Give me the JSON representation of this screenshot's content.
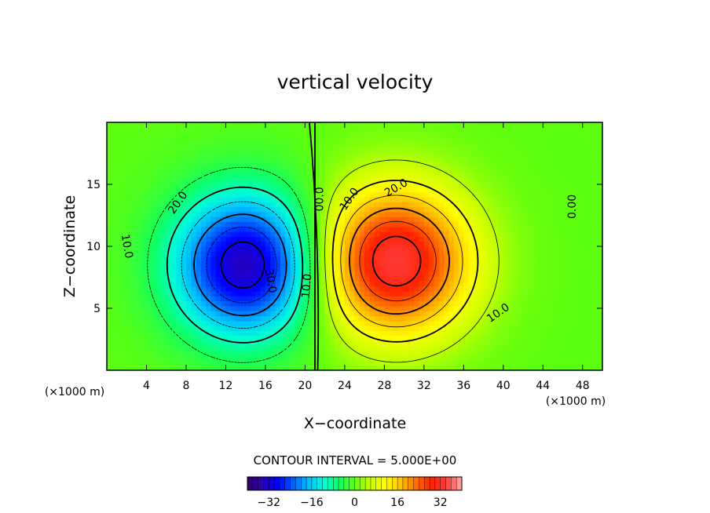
{
  "chart_data": {
    "type": "heatmap",
    "title": "vertical velocity",
    "xlabel": "X−coordinate",
    "ylabel": "Z−coordinate",
    "x_units": "(×1000 m)",
    "y_units": "(×1000 m)",
    "xlim": [
      0,
      50
    ],
    "ylim": [
      0,
      20
    ],
    "x_ticks": [
      4,
      8,
      12,
      16,
      20,
      24,
      28,
      32,
      36,
      40,
      44,
      48
    ],
    "y_ticks": [
      5,
      10,
      15
    ],
    "contour_interval_note": "CONTOUR INTERVAL = 5.000E+00",
    "contour_interval": 5,
    "field": {
      "downdraft": {
        "center_x": 14,
        "center_z": 8.5,
        "min": -34,
        "radius_x": 7.5,
        "radius_z": 6
      },
      "updraft": {
        "center_x": 29,
        "center_z": 8.8,
        "max": 34,
        "radius_x": 8,
        "radius_z": 6.2
      },
      "zero_line_x": 21
    },
    "contour_labels": [
      {
        "text": "10.0",
        "x": 2,
        "z": 10,
        "rotation": 80
      },
      {
        "text": "20.0",
        "x": 7.2,
        "z": 13.5,
        "rotation": -55
      },
      {
        "text": "30.0",
        "x": 16.5,
        "z": 7.2,
        "rotation": 80
      },
      {
        "text": "10.0",
        "x": 20.2,
        "z": 6.8,
        "rotation": -85
      },
      {
        "text": "00.0",
        "x": 21.5,
        "z": 13.8,
        "rotation": -90
      },
      {
        "text": "10.0",
        "x": 24.5,
        "z": 13.8,
        "rotation": -55
      },
      {
        "text": "20.0",
        "x": 29.2,
        "z": 14.7,
        "rotation": -30
      },
      {
        "text": "10.0",
        "x": 39.5,
        "z": 4.6,
        "rotation": -35
      },
      {
        "text": "0.00",
        "x": 47,
        "z": 13.2,
        "rotation": -90
      }
    ],
    "colorbar": {
      "min": -40,
      "max": 40,
      "tick_labels": [
        -32,
        -16,
        0,
        16,
        32
      ],
      "colors": [
        "#35005f",
        "#2a00b8",
        "#0000ff",
        "#0060ff",
        "#00c0ff",
        "#00ffd6",
        "#10ff60",
        "#5cff10",
        "#c8ff00",
        "#ffff00",
        "#ffc000",
        "#ff7000",
        "#ff2000",
        "#ff3c3c",
        "#ffb0a8"
      ]
    },
    "grid": false
  }
}
